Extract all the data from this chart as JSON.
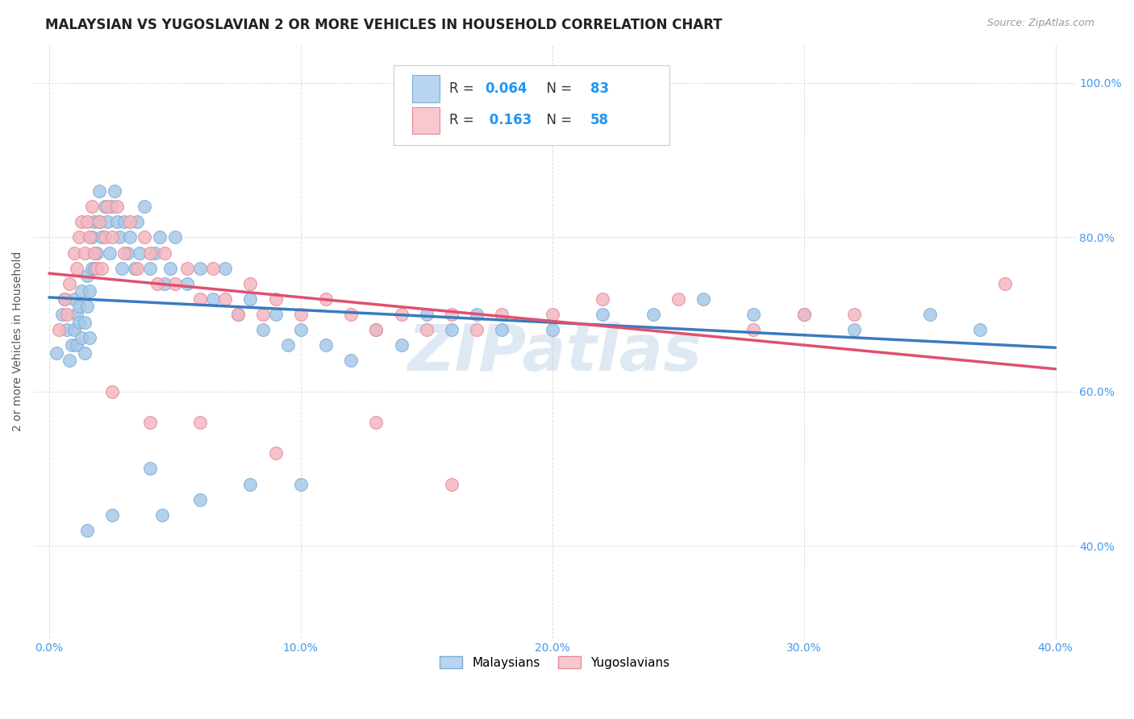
{
  "title": "MALAYSIAN VS YUGOSLAVIAN 2 OR MORE VEHICLES IN HOUSEHOLD CORRELATION CHART",
  "source": "Source: ZipAtlas.com",
  "ylabel": "2 or more Vehicles in Household",
  "xlim": [
    0.0,
    0.4
  ],
  "ylim": [
    0.28,
    1.05
  ],
  "malaysian_R": "0.064",
  "malaysian_N": "83",
  "yugoslavian_R": "0.163",
  "yugoslavian_N": "58",
  "blue_scatter_color": "#a8c8e8",
  "blue_scatter_edge": "#7bafd4",
  "pink_scatter_color": "#f4b8c0",
  "pink_scatter_edge": "#e88898",
  "blue_line_color": "#3a7bbf",
  "pink_line_color": "#e05070",
  "blue_legend_fill": "#b8d4f0",
  "blue_legend_edge": "#7bafd4",
  "pink_legend_fill": "#f8c8d0",
  "pink_legend_edge": "#e88898",
  "text_dark": "#333333",
  "text_blue": "#2196F3",
  "watermark_color": "#c0d4e8",
  "grid_color": "#dddddd",
  "tick_color": "#4499ee",
  "title_fontsize": 12,
  "axis_label_fontsize": 10,
  "tick_fontsize": 10,
  "legend_fontsize": 12,
  "mal_x": [
    0.003,
    0.005,
    0.006,
    0.007,
    0.008,
    0.009,
    0.01,
    0.01,
    0.011,
    0.011,
    0.012,
    0.012,
    0.013,
    0.013,
    0.014,
    0.014,
    0.015,
    0.015,
    0.016,
    0.016,
    0.017,
    0.017,
    0.018,
    0.018,
    0.019,
    0.02,
    0.02,
    0.021,
    0.022,
    0.023,
    0.024,
    0.025,
    0.026,
    0.027,
    0.028,
    0.029,
    0.03,
    0.031,
    0.032,
    0.034,
    0.035,
    0.036,
    0.038,
    0.04,
    0.042,
    0.044,
    0.046,
    0.048,
    0.05,
    0.055,
    0.06,
    0.065,
    0.07,
    0.075,
    0.08,
    0.085,
    0.09,
    0.095,
    0.1,
    0.11,
    0.12,
    0.13,
    0.14,
    0.15,
    0.16,
    0.17,
    0.18,
    0.2,
    0.22,
    0.24,
    0.26,
    0.28,
    0.3,
    0.32,
    0.35,
    0.37,
    0.06,
    0.1,
    0.04,
    0.025,
    0.015,
    0.08,
    0.045
  ],
  "mal_y": [
    0.65,
    0.7,
    0.72,
    0.68,
    0.64,
    0.66,
    0.68,
    0.72,
    0.7,
    0.66,
    0.69,
    0.71,
    0.73,
    0.67,
    0.65,
    0.69,
    0.71,
    0.75,
    0.73,
    0.67,
    0.76,
    0.8,
    0.82,
    0.76,
    0.78,
    0.82,
    0.86,
    0.8,
    0.84,
    0.82,
    0.78,
    0.84,
    0.86,
    0.82,
    0.8,
    0.76,
    0.82,
    0.78,
    0.8,
    0.76,
    0.82,
    0.78,
    0.84,
    0.76,
    0.78,
    0.8,
    0.74,
    0.76,
    0.8,
    0.74,
    0.76,
    0.72,
    0.76,
    0.7,
    0.72,
    0.68,
    0.7,
    0.66,
    0.68,
    0.66,
    0.64,
    0.68,
    0.66,
    0.7,
    0.68,
    0.7,
    0.68,
    0.68,
    0.7,
    0.7,
    0.72,
    0.7,
    0.7,
    0.68,
    0.7,
    0.68,
    0.46,
    0.48,
    0.5,
    0.44,
    0.42,
    0.48,
    0.44
  ],
  "yug_x": [
    0.004,
    0.006,
    0.007,
    0.008,
    0.01,
    0.011,
    0.012,
    0.013,
    0.014,
    0.015,
    0.016,
    0.017,
    0.018,
    0.019,
    0.02,
    0.021,
    0.022,
    0.023,
    0.025,
    0.027,
    0.03,
    0.032,
    0.035,
    0.038,
    0.04,
    0.043,
    0.046,
    0.05,
    0.055,
    0.06,
    0.065,
    0.07,
    0.075,
    0.08,
    0.085,
    0.09,
    0.1,
    0.11,
    0.12,
    0.13,
    0.14,
    0.15,
    0.16,
    0.17,
    0.18,
    0.2,
    0.22,
    0.25,
    0.28,
    0.3,
    0.32,
    0.38,
    0.025,
    0.04,
    0.06,
    0.09,
    0.13,
    0.16
  ],
  "yug_y": [
    0.68,
    0.72,
    0.7,
    0.74,
    0.78,
    0.76,
    0.8,
    0.82,
    0.78,
    0.82,
    0.8,
    0.84,
    0.78,
    0.76,
    0.82,
    0.76,
    0.8,
    0.84,
    0.8,
    0.84,
    0.78,
    0.82,
    0.76,
    0.8,
    0.78,
    0.74,
    0.78,
    0.74,
    0.76,
    0.72,
    0.76,
    0.72,
    0.7,
    0.74,
    0.7,
    0.72,
    0.7,
    0.72,
    0.7,
    0.68,
    0.7,
    0.68,
    0.7,
    0.68,
    0.7,
    0.7,
    0.72,
    0.72,
    0.68,
    0.7,
    0.7,
    0.74,
    0.6,
    0.56,
    0.56,
    0.52,
    0.56,
    0.48
  ],
  "x_tick_vals": [
    0.0,
    0.1,
    0.2,
    0.3,
    0.4
  ],
  "x_tick_labels": [
    "0.0%",
    "10.0%",
    "20.0%",
    "30.0%",
    "40.0%"
  ],
  "y_tick_vals": [
    0.4,
    0.6,
    0.8,
    1.0
  ],
  "y_tick_labels": [
    "40.0%",
    "60.0%",
    "80.0%",
    "100.0%"
  ]
}
